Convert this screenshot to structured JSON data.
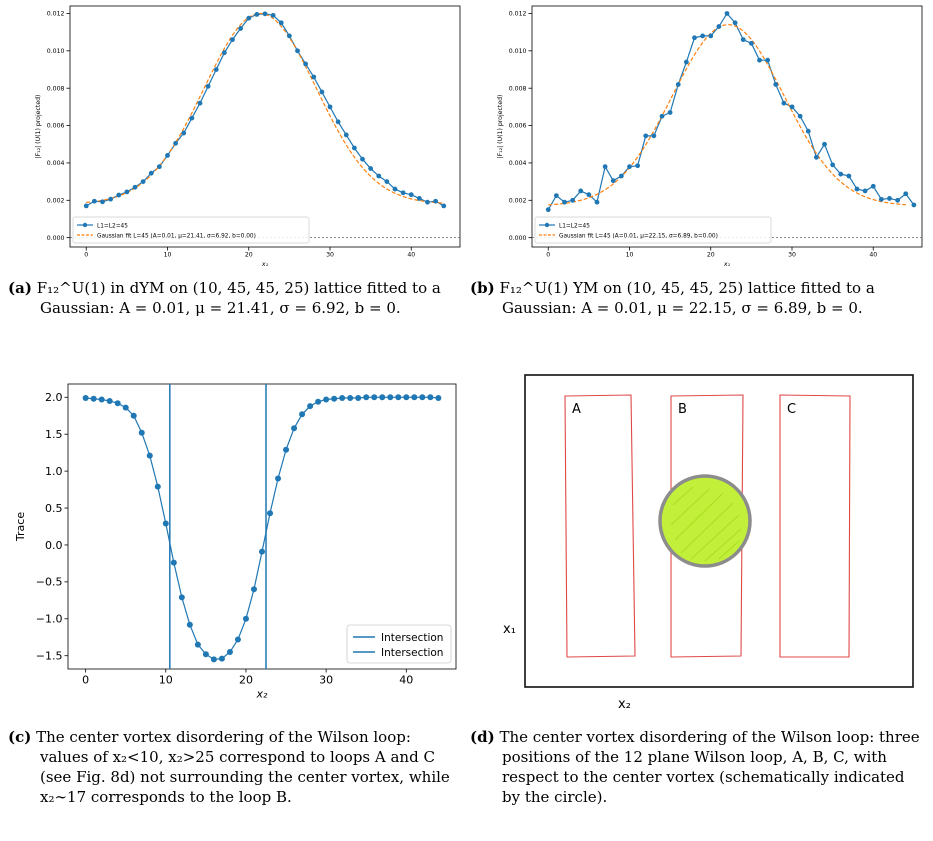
{
  "figures": {
    "a": {
      "caption_label": "(a)",
      "caption_text": "F₁₂^U(1) in dYM on (10, 45, 45, 25) lattice fitted to a Gaussian: A = 0.01, μ = 21.41, σ = 6.92, b = 0."
    },
    "b": {
      "caption_label": "(b)",
      "caption_text": "F₁₂^U(1) YM on (10, 45, 45, 25) lattice fitted to a Gaussian: A = 0.01, μ = 22.15, σ = 6.89, b = 0."
    },
    "c": {
      "caption_label": "(c)",
      "caption_text": "The center vortex disordering of the Wilson loop: values of x₂<10, x₂>25 correspond to loops A and C (see Fig. 8d) not surrounding the center vortex, while x₂∼17 corresponds to the loop B."
    },
    "d": {
      "caption_label": "(d)",
      "caption_text": "The center vortex disordering of the Wilson loop: three positions of the 12 plane Wilson loop, A, B, C, with respect to the center vortex (schematically indicated by the circle).",
      "loop_labels": [
        "A",
        "B",
        "C"
      ],
      "axis_y_label": "x₁",
      "axis_x_label": "x₂"
    }
  },
  "chart_data": [
    {
      "id": "a",
      "type": "line",
      "xlabel": "x₁",
      "ylabel": "|F₁₂| (U(1) projected)",
      "xlim": [
        -2,
        46
      ],
      "ylim": [
        -0.0005,
        0.0124
      ],
      "xticks": [
        0,
        10,
        20,
        30,
        40
      ],
      "yticks": [
        0.0,
        0.002,
        0.004,
        0.006,
        0.008,
        0.01,
        0.012
      ],
      "ytick_labels": [
        "0.000",
        "0.002",
        "0.004",
        "0.006",
        "0.008",
        "0.010",
        "0.012"
      ],
      "hline": 0,
      "legend": "lower-left",
      "series": [
        {
          "name": "L1=L2=45",
          "color": "#1f77b4",
          "marker": true,
          "values": [
            0.0017,
            0.00195,
            0.00192,
            0.00206,
            0.00228,
            0.00245,
            0.0027,
            0.003,
            0.00345,
            0.0038,
            0.0044,
            0.00505,
            0.0056,
            0.0064,
            0.0072,
            0.0081,
            0.009,
            0.0099,
            0.0106,
            0.0112,
            0.01175,
            0.01195,
            0.01198,
            0.0119,
            0.0115,
            0.0108,
            0.01,
            0.0093,
            0.0086,
            0.0078,
            0.007,
            0.0062,
            0.0055,
            0.0048,
            0.0042,
            0.0037,
            0.0033,
            0.003,
            0.0026,
            0.0024,
            0.0023,
            0.0021,
            0.0019,
            0.00195,
            0.0017
          ]
        },
        {
          "name": "Gaussian fit L=45 (A=0.01, μ=21.41, σ=6.92, b=0.00)",
          "color": "#ff7f0e",
          "dashed": true,
          "fit": {
            "A": 0.0102,
            "mu": 21.41,
            "sigma": 6.92,
            "b": 0.0018
          }
        }
      ]
    },
    {
      "id": "b",
      "type": "line",
      "xlabel": "x₁",
      "ylabel": "|F₁₂| (U(1) projected)",
      "xlim": [
        -2,
        46
      ],
      "ylim": [
        -0.0005,
        0.0124
      ],
      "xticks": [
        0,
        10,
        20,
        30,
        40
      ],
      "yticks": [
        0.0,
        0.002,
        0.004,
        0.006,
        0.008,
        0.01,
        0.012
      ],
      "ytick_labels": [
        "0.000",
        "0.002",
        "0.004",
        "0.006",
        "0.008",
        "0.010",
        "0.012"
      ],
      "hline": 0,
      "legend": "lower-left",
      "series": [
        {
          "name": "L1=L2=45",
          "color": "#1f77b4",
          "marker": true,
          "values": [
            0.0015,
            0.00225,
            0.0019,
            0.002,
            0.0025,
            0.0023,
            0.0019,
            0.0038,
            0.00305,
            0.0033,
            0.0038,
            0.00385,
            0.00545,
            0.00545,
            0.0065,
            0.0067,
            0.0082,
            0.0094,
            0.0107,
            0.0108,
            0.0108,
            0.0113,
            0.012,
            0.0115,
            0.0106,
            0.0104,
            0.0095,
            0.0095,
            0.0082,
            0.0072,
            0.007,
            0.0065,
            0.0057,
            0.0043,
            0.005,
            0.0039,
            0.0034,
            0.0033,
            0.0026,
            0.0025,
            0.00275,
            0.00205,
            0.0021,
            0.002,
            0.00235,
            0.00175
          ]
        },
        {
          "name": "Gaussian fit L=45 (A=0.01, μ=22.15, σ=6.89, b=0.00)",
          "color": "#ff7f0e",
          "dashed": true,
          "fit": {
            "A": 0.0097,
            "mu": 22.15,
            "sigma": 6.89,
            "b": 0.0017
          }
        }
      ]
    },
    {
      "id": "c",
      "type": "line",
      "xlabel": "x₂",
      "ylabel": "Trace",
      "xlim": [
        -2.2,
        46.2
      ],
      "ylim": [
        -1.68,
        2.18
      ],
      "xticks": [
        0,
        10,
        20,
        30,
        40
      ],
      "yticks": [
        -1.5,
        -1.0,
        -0.5,
        0.0,
        0.5,
        1.0,
        1.5,
        2.0
      ],
      "ytick_labels": [
        "−1.5",
        "−1.0",
        "−0.5",
        "0.0",
        "0.5",
        "1.0",
        "1.5",
        "2.0"
      ],
      "vlines": [
        10.5,
        22.5
      ],
      "legend": "lower-right",
      "legend_entries": [
        "Intersection",
        "Intersection"
      ],
      "series": [
        {
          "name": "",
          "color": "#1f77b4",
          "marker": true,
          "values": [
            1.99,
            1.98,
            1.97,
            1.95,
            1.92,
            1.86,
            1.75,
            1.52,
            1.21,
            0.79,
            0.29,
            -0.24,
            -0.71,
            -1.08,
            -1.35,
            -1.48,
            -1.55,
            -1.54,
            -1.45,
            -1.28,
            -1.0,
            -0.6,
            -0.09,
            0.43,
            0.9,
            1.29,
            1.58,
            1.77,
            1.88,
            1.94,
            1.97,
            1.98,
            1.99,
            1.99,
            1.99,
            2.0,
            2.0,
            2.0,
            2.0,
            2.0,
            2.0,
            2.0,
            2.0,
            2.0,
            1.99
          ]
        }
      ]
    }
  ]
}
